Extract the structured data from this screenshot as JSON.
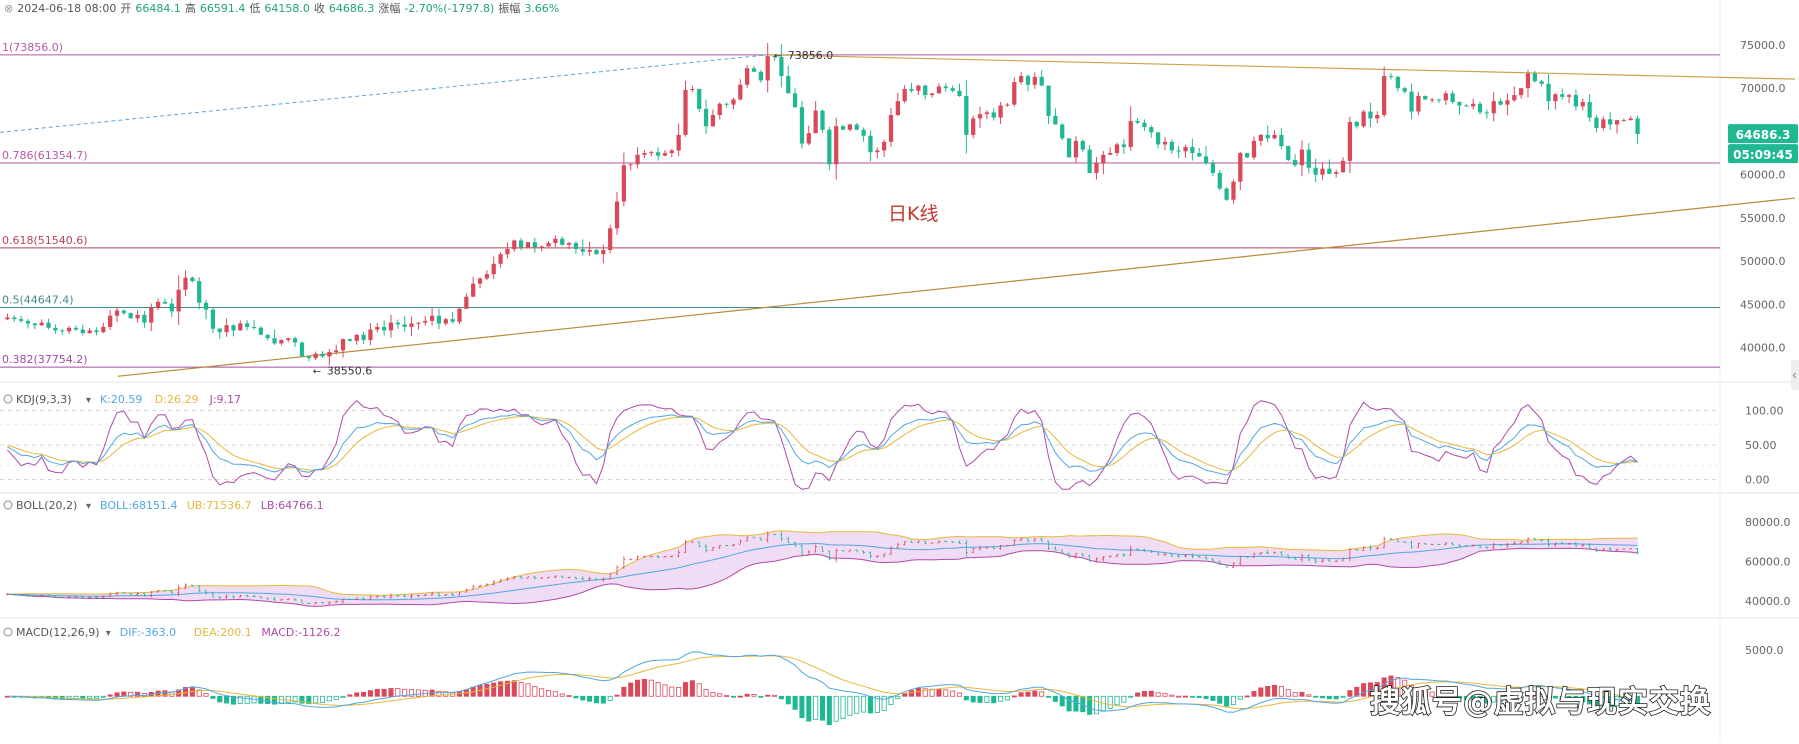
{
  "header": {
    "date": "2024-06-18 08:00",
    "open_label": "开",
    "open": "66484.1",
    "high_label": "高",
    "high": "66591.4",
    "low_label": "低",
    "low": "64158.0",
    "close_label": "收",
    "close": "64686.3",
    "change_label": "涨幅",
    "change": "-2.70%(-1797.8)",
    "amp_label": "振幅",
    "amp": "3.66%"
  },
  "annotation": "日K线",
  "watermark": "搜狐号@虚拟与现实交换",
  "price_badge": "64686.3",
  "countdown_badge": "05:09:45",
  "colors": {
    "up": "#d9495a",
    "down": "#1fb893",
    "price_badge": "#1fb893",
    "annotation": "#c0392b"
  },
  "chart_data": [
    {
      "type": "candlestick",
      "name": "price",
      "y_axis_ticks": [
        "75000.0",
        "70000.0",
        "65000.0",
        "60000.0",
        "55000.0",
        "50000.0",
        "45000.0",
        "40000.0"
      ],
      "ylim": [
        36500,
        75800
      ],
      "fib_levels": [
        {
          "label": "1(73856.0)",
          "value": 73856.0,
          "color": "#b45aa8"
        },
        {
          "label": "0.786(61354.7)",
          "value": 61354.7,
          "color": "#b45aa8"
        },
        {
          "label": "0.618(51540.6)",
          "value": 51540.6,
          "color": "#b8435a"
        },
        {
          "label": "0.5(44647.4)",
          "value": 44647.4,
          "color": "#3f8c8c"
        },
        {
          "label": "0.382(37754.2)",
          "value": 37754.2,
          "color": "#a34aa3"
        }
      ],
      "high_marker": "73856.0",
      "low_marker": "38550.6",
      "closes": [
        43500,
        43300,
        43100,
        42800,
        42600,
        42900,
        42300,
        42000,
        41900,
        42300,
        42100,
        41700,
        42000,
        41800,
        42400,
        43700,
        44300,
        44000,
        43400,
        43800,
        42900,
        44600,
        45300,
        45100,
        44200,
        46700,
        48100,
        47700,
        45200,
        44400,
        42200,
        41800,
        42600,
        42000,
        42800,
        42400,
        42300,
        41500,
        41100,
        40500,
        40900,
        41100,
        40600,
        39000,
        38800,
        39300,
        39000,
        39500,
        39700,
        41000,
        40800,
        41500,
        40900,
        42100,
        42400,
        42000,
        42900,
        42700,
        42400,
        42800,
        42900,
        43100,
        43700,
        42800,
        43300,
        43000,
        44500,
        45900,
        47400,
        48000,
        48500,
        49700,
        50800,
        51400,
        52400,
        51600,
        52200,
        51600,
        51700,
        52100,
        52600,
        51900,
        52100,
        51400,
        51100,
        51300,
        50800,
        51300,
        53800,
        56900,
        61100,
        61200,
        62300,
        62500,
        62600,
        62200,
        62500,
        62800,
        64600,
        69800,
        69900,
        67600,
        65600,
        66900,
        68200,
        68100,
        68700,
        70400,
        72300,
        71900,
        70900,
        73700,
        73600,
        71400,
        69400,
        67800,
        63600,
        64800,
        67400,
        65200,
        61200,
        65600,
        65200,
        65800,
        65200,
        64500,
        62600,
        62800,
        63800,
        66900,
        68500,
        69900,
        69700,
        70300,
        69200,
        69400,
        70200,
        70000,
        69700,
        69100,
        64600,
        66500,
        67000,
        67200,
        66600,
        68000,
        68100,
        70700,
        71400,
        70400,
        71300,
        70300,
        66800,
        65800,
        64200,
        62000,
        63900,
        62900,
        60200,
        61300,
        62300,
        62500,
        63500,
        63200,
        66200,
        66000,
        65500,
        64900,
        63500,
        63800,
        62800,
        62700,
        63200,
        62500,
        62100,
        61300,
        60200,
        58400,
        57100,
        59200,
        62500,
        62000,
        63900,
        64600,
        64200,
        64600,
        63300,
        61700,
        61100,
        62900,
        60800,
        60000,
        60700,
        60100,
        60300,
        61600,
        66100,
        65600,
        67300,
        66500,
        66900,
        71400,
        71300,
        70000,
        69600,
        67300,
        69100,
        68700,
        68700,
        68600,
        69400,
        68400,
        68000,
        67900,
        68200,
        67200,
        67100,
        68500,
        68100,
        68600,
        69200,
        70000,
        71700,
        70800,
        70500,
        68500,
        69300,
        69000,
        69200,
        67900,
        68400,
        66600,
        65400,
        66400,
        65800,
        66300,
        66300,
        66500,
        64700
      ]
    },
    {
      "type": "line",
      "name": "KDJ(9,3,3)",
      "legend": [
        {
          "label": "K:20.59",
          "color": "#52a7e0"
        },
        {
          "label": "D:26.29",
          "color": "#e6b83c"
        },
        {
          "label": "J:9.17",
          "color": "#b04aa8"
        }
      ],
      "y_axis_ticks": [
        "100.00",
        "50.00",
        "0.00"
      ],
      "ylim": [
        -15,
        115
      ]
    },
    {
      "type": "line",
      "name": "BOLL(20,2)",
      "legend": [
        {
          "label": "BOLL:68151.4",
          "color": "#52a7e0"
        },
        {
          "label": "UB:71536.7",
          "color": "#e6b83c"
        },
        {
          "label": "LB:64766.1",
          "color": "#b04aa8"
        }
      ],
      "y_axis_ticks": [
        "80000.0",
        "60000.0",
        "40000.0"
      ],
      "ylim": [
        33000,
        87000
      ]
    },
    {
      "type": "bar",
      "name": "MACD(12,26,9)",
      "legend": [
        {
          "label": "DIF:-363.0",
          "color": "#52a7e0"
        },
        {
          "label": "DEA:200.1",
          "color": "#e6b83c"
        },
        {
          "label": "MACD:-1126.2",
          "color": "#b04aa8"
        }
      ],
      "y_axis_ticks": [
        "5000.0"
      ],
      "ylim": [
        -4500,
        6500
      ]
    }
  ]
}
